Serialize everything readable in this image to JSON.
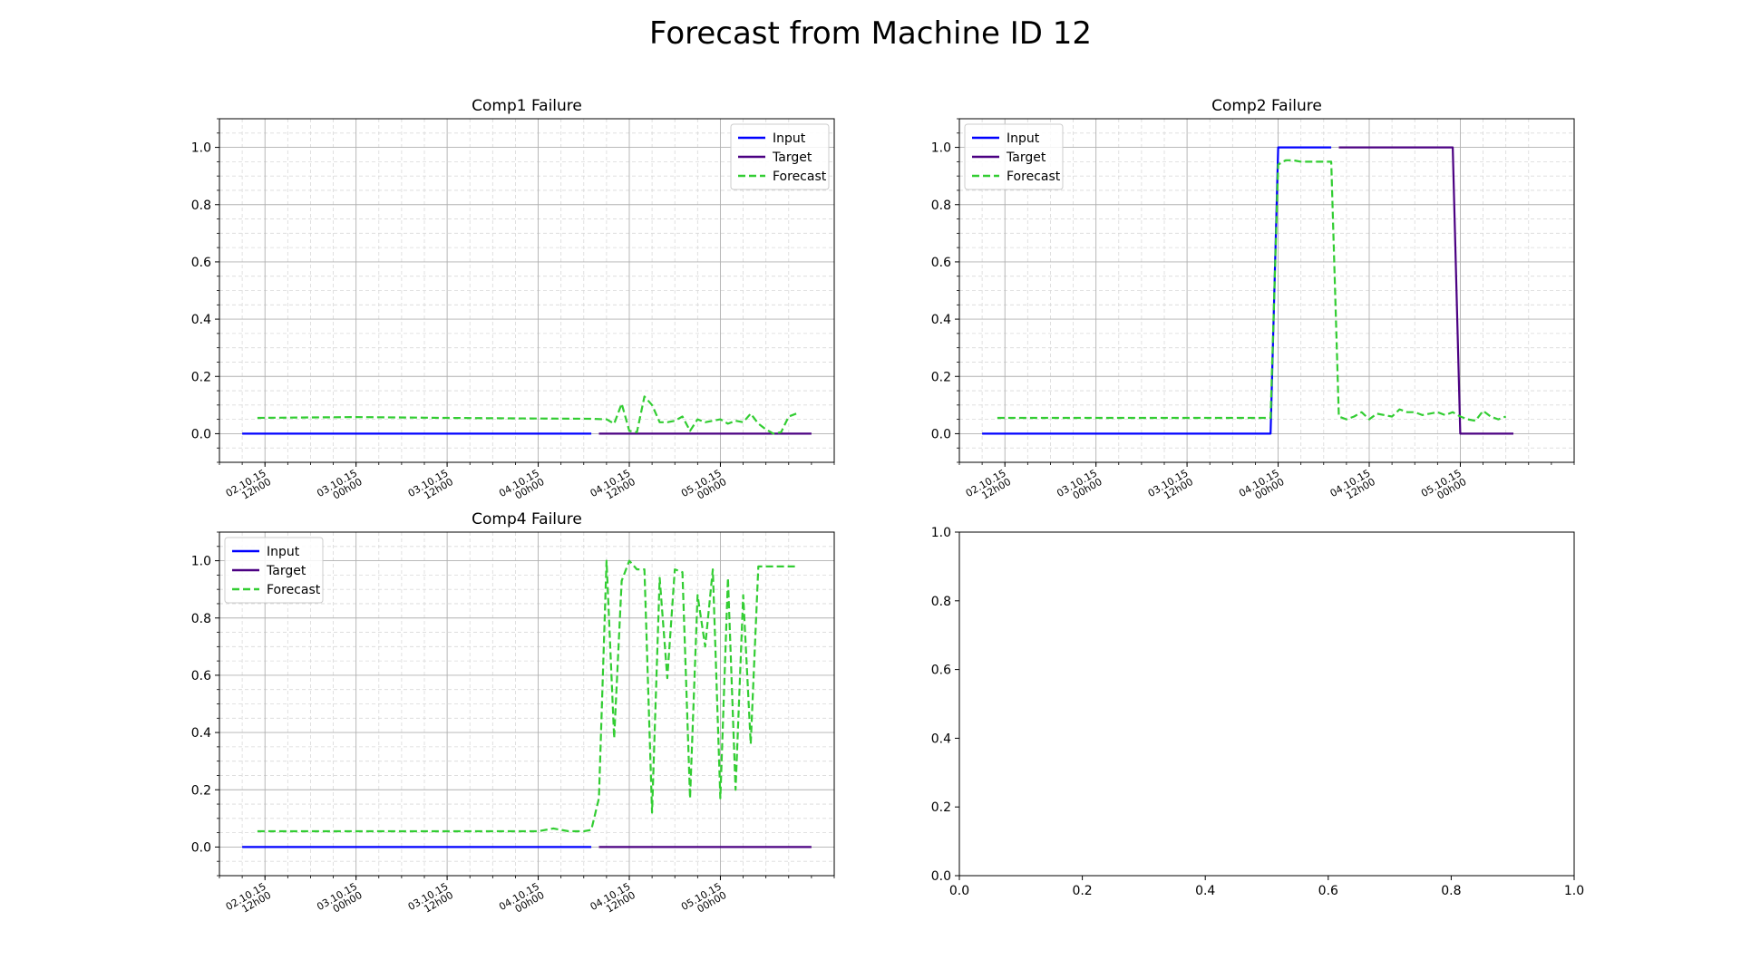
{
  "figure": {
    "title": "Forecast from Machine ID 12"
  },
  "chart_data": [
    {
      "type": "line",
      "title": "Comp1 Failure",
      "xlabel": "",
      "ylabel": "",
      "ylim": [
        -0.1,
        1.1
      ],
      "yticks": [
        "0.0",
        "0.2",
        "0.4",
        "0.6",
        "0.8",
        "1.0"
      ],
      "xticks": [
        "02.10.15 12h00",
        "03.10.15 00h00",
        "03.10.15 12h00",
        "04.10.15 00h00",
        "04.10.15 12h00",
        "05.10.15 00h00"
      ],
      "grid": true,
      "legend": "top-right",
      "series": [
        {
          "name": "Input",
          "color": "#0000ff",
          "style": "solid",
          "x": [
            "02.10.15 09h00",
            "04.10.15 07h00"
          ],
          "y": [
            0.0,
            0.0
          ]
        },
        {
          "name": "Target",
          "color": "#4b0082",
          "style": "solid",
          "x": [
            "04.10.15 08h00",
            "05.10.15 12h00"
          ],
          "y": [
            0.0,
            0.0
          ]
        },
        {
          "name": "Forecast",
          "color": "#32cd32",
          "style": "dashed",
          "x": [
            "02.10.15 11h00",
            "03.10.15 00h00",
            "03.10.15 12h00",
            "04.10.15 00h00",
            "04.10.15 07h00",
            "04.10.15 09h00",
            "04.10.15 10h00",
            "04.10.15 11h00",
            "04.10.15 12h00",
            "04.10.15 13h00",
            "04.10.15 14h00",
            "04.10.15 15h00",
            "04.10.15 16h00",
            "04.10.15 17h00",
            "04.10.15 18h00",
            "04.10.15 19h00",
            "04.10.15 20h00",
            "04.10.15 21h00",
            "04.10.15 22h00",
            "04.10.15 23h00",
            "05.10.15 00h00",
            "05.10.15 01h00",
            "05.10.15 02h00",
            "05.10.15 03h00",
            "05.10.15 04h00",
            "05.10.15 05h00",
            "05.10.15 06h00",
            "05.10.15 07h00",
            "05.10.15 08h00",
            "05.10.15 09h00",
            "05.10.15 10h00"
          ],
          "y": [
            0.055,
            0.058,
            0.055,
            0.053,
            0.052,
            0.05,
            0.035,
            0.105,
            0.01,
            0.005,
            0.13,
            0.1,
            0.04,
            0.04,
            0.045,
            0.06,
            0.01,
            0.05,
            0.04,
            0.045,
            0.05,
            0.035,
            0.045,
            0.04,
            0.07,
            0.035,
            0.015,
            0.0,
            0.005,
            0.06,
            0.07
          ]
        }
      ]
    },
    {
      "type": "line",
      "title": "Comp2 Failure",
      "xlabel": "",
      "ylabel": "",
      "ylim": [
        -0.1,
        1.1
      ],
      "yticks": [
        "0.0",
        "0.2",
        "0.4",
        "0.6",
        "0.8",
        "1.0"
      ],
      "xticks": [
        "02.10.15 12h00",
        "03.10.15 00h00",
        "03.10.15 12h00",
        "04.10.15 00h00",
        "04.10.15 12h00",
        "05.10.15 00h00"
      ],
      "grid": true,
      "legend": "top-left",
      "series": [
        {
          "name": "Input",
          "color": "#0000ff",
          "style": "solid",
          "x": [
            "02.10.15 09h00",
            "03.10.15 23h00",
            "04.10.15 00h00",
            "04.10.15 07h00"
          ],
          "y": [
            0.0,
            0.0,
            1.0,
            1.0
          ]
        },
        {
          "name": "Target",
          "color": "#4b0082",
          "style": "solid",
          "x": [
            "04.10.15 08h00",
            "04.10.15 23h00",
            "05.10.15 00h00",
            "05.10.15 07h00"
          ],
          "y": [
            1.0,
            1.0,
            0.0,
            0.0
          ]
        },
        {
          "name": "Forecast",
          "color": "#32cd32",
          "style": "dashed",
          "x": [
            "02.10.15 11h00",
            "03.10.15 00h00",
            "03.10.15 12h00",
            "03.10.15 23h00",
            "04.10.15 00h00",
            "04.10.15 01h00",
            "04.10.15 02h00",
            "04.10.15 03h00",
            "04.10.15 04h00",
            "04.10.15 05h00",
            "04.10.15 06h00",
            "04.10.15 07h00",
            "04.10.15 08h00",
            "04.10.15 09h00",
            "04.10.15 10h00",
            "04.10.15 11h00",
            "04.10.15 12h00",
            "04.10.15 13h00",
            "04.10.15 14h00",
            "04.10.15 15h00",
            "04.10.15 16h00",
            "04.10.15 17h00",
            "04.10.15 18h00",
            "04.10.15 19h00",
            "04.10.15 20h00",
            "04.10.15 21h00",
            "04.10.15 22h00",
            "04.10.15 23h00",
            "05.10.15 00h00",
            "05.10.15 01h00",
            "05.10.15 02h00",
            "05.10.15 03h00",
            "05.10.15 04h00",
            "05.10.15 05h00",
            "05.10.15 06h00"
          ],
          "y": [
            0.055,
            0.055,
            0.055,
            0.055,
            0.94,
            0.955,
            0.955,
            0.95,
            0.95,
            0.95,
            0.95,
            0.95,
            0.06,
            0.05,
            0.06,
            0.075,
            0.05,
            0.07,
            0.065,
            0.06,
            0.085,
            0.075,
            0.075,
            0.065,
            0.07,
            0.075,
            0.065,
            0.075,
            0.06,
            0.05,
            0.045,
            0.08,
            0.06,
            0.05,
            0.06
          ]
        }
      ]
    },
    {
      "type": "line",
      "title": "Comp4 Failure",
      "xlabel": "",
      "ylabel": "",
      "ylim": [
        -0.1,
        1.1
      ],
      "yticks": [
        "0.0",
        "0.2",
        "0.4",
        "0.6",
        "0.8",
        "1.0"
      ],
      "xticks": [
        "02.10.15 12h00",
        "03.10.15 00h00",
        "03.10.15 12h00",
        "04.10.15 00h00",
        "04.10.15 12h00",
        "05.10.15 00h00"
      ],
      "grid": true,
      "legend": "top-left",
      "series": [
        {
          "name": "Input",
          "color": "#0000ff",
          "style": "solid",
          "x": [
            "02.10.15 09h00",
            "04.10.15 07h00"
          ],
          "y": [
            0.0,
            0.0
          ]
        },
        {
          "name": "Target",
          "color": "#4b0082",
          "style": "solid",
          "x": [
            "04.10.15 08h00",
            "05.10.15 12h00"
          ],
          "y": [
            0.0,
            0.0
          ]
        },
        {
          "name": "Forecast",
          "color": "#32cd32",
          "style": "dashed",
          "x": [
            "02.10.15 11h00",
            "03.10.15 00h00",
            "03.10.15 12h00",
            "04.10.15 00h00",
            "04.10.15 02h00",
            "04.10.15 03h00",
            "04.10.15 04h00",
            "04.10.15 05h00",
            "04.10.15 06h00",
            "04.10.15 07h00",
            "04.10.15 08h00",
            "04.10.15 09h00",
            "04.10.15 10h00",
            "04.10.15 11h00",
            "04.10.15 12h00",
            "04.10.15 13h00",
            "04.10.15 14h00",
            "04.10.15 15h00",
            "04.10.15 16h00",
            "04.10.15 17h00",
            "04.10.15 18h00",
            "04.10.15 19h00",
            "04.10.15 20h00",
            "04.10.15 21h00",
            "04.10.15 22h00",
            "04.10.15 23h00",
            "05.10.15 00h00",
            "05.10.15 01h00",
            "05.10.15 02h00",
            "05.10.15 03h00",
            "05.10.15 04h00",
            "05.10.15 05h00",
            "05.10.15 06h00",
            "05.10.15 07h00",
            "05.10.15 08h00",
            "05.10.15 09h00",
            "05.10.15 10h00"
          ],
          "y": [
            0.055,
            0.055,
            0.055,
            0.055,
            0.065,
            0.06,
            0.055,
            0.055,
            0.055,
            0.06,
            0.17,
            1.0,
            0.38,
            0.93,
            1.0,
            0.97,
            0.97,
            0.12,
            0.94,
            0.59,
            0.97,
            0.96,
            0.17,
            0.88,
            0.7,
            0.97,
            0.17,
            0.94,
            0.2,
            0.88,
            0.36,
            0.98,
            0.98,
            0.98,
            0.98,
            0.98,
            0.98
          ]
        }
      ]
    },
    {
      "type": "line",
      "title": "",
      "xlabel": "",
      "ylabel": "",
      "xlim": [
        0.0,
        1.0
      ],
      "ylim": [
        0.0,
        1.0
      ],
      "xticks": [
        "0.0",
        "0.2",
        "0.4",
        "0.6",
        "0.8",
        "1.0"
      ],
      "yticks": [
        "0.0",
        "0.2",
        "0.4",
        "0.6",
        "0.8",
        "1.0"
      ],
      "grid": false,
      "series": []
    }
  ]
}
